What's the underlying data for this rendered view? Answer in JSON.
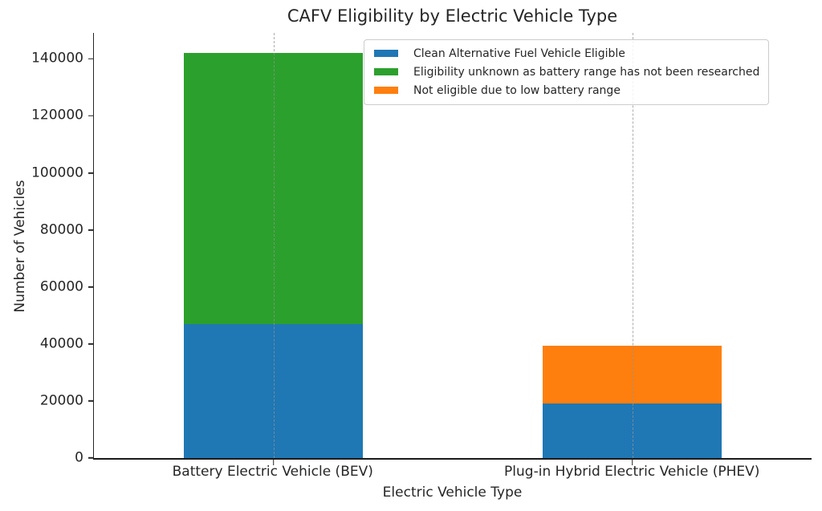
{
  "chart_data": {
    "type": "bar",
    "stacked": true,
    "title": "CAFV Eligibility by Electric Vehicle Type",
    "xlabel": "Electric Vehicle Type",
    "ylabel": "Number of Vehicles",
    "categories": [
      "Battery Electric Vehicle (BEV)",
      "Plug-in Hybrid Electric Vehicle (PHEV)"
    ],
    "series": [
      {
        "key": "cafv-eligible",
        "name": "Clean Alternative Fuel Vehicle Eligible",
        "color": "#1f77b4",
        "values": [
          47000,
          19000
        ]
      },
      {
        "key": "unknown-battery-range",
        "name": "Eligibility unknown as battery range has not been researched",
        "color": "#2ca02c",
        "values": [
          95000,
          0
        ]
      },
      {
        "key": "not-eligible",
        "name": "Not eligible due to low battery range",
        "color": "#ff7f0e",
        "values": [
          0,
          20500
        ]
      }
    ],
    "ylim": [
      0,
      149100
    ],
    "yticks": [
      0,
      20000,
      40000,
      60000,
      80000,
      100000,
      120000,
      140000
    ],
    "bar_width_fraction": 0.25,
    "grid": {
      "axis": "x",
      "style": "dashed",
      "color": "#919191"
    },
    "legend_position": "upper right"
  }
}
